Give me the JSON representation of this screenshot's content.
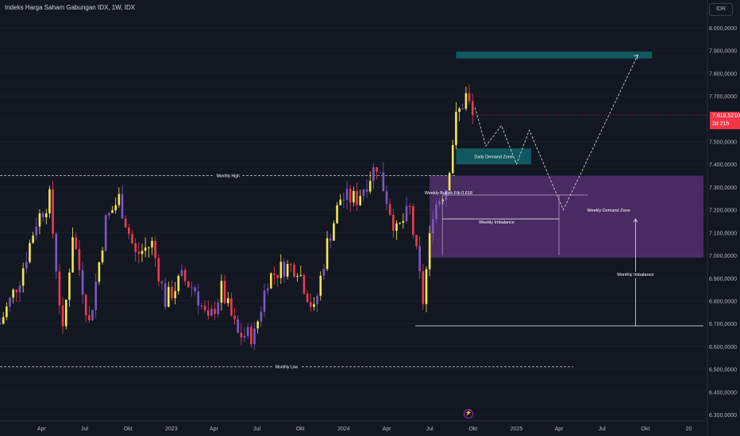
{
  "header": {
    "title": "Indeks Harga Saham Gabungan IDX, 1W, IDX",
    "currency_button": "IDR"
  },
  "price_tag": {
    "price": "7.616,5210",
    "countdown": "2d 21h"
  },
  "colors": {
    "background": "#131722",
    "bull_candle": "#f3e84a",
    "bear_candle": "#ef3b4f",
    "alt_candle": "#7e57c2",
    "teal_zone": "#0f5c63",
    "purple_zone": "#7b3fa0"
  },
  "icons": {
    "events": "flash-icon"
  },
  "chart_data": {
    "type": "candlestick",
    "title": "Indeks Harga Saham Gabungan IDX, 1W, IDX",
    "y_axis": {
      "min": 6300,
      "max": 8000,
      "tick_values": [
        8000,
        7900,
        7800,
        7700,
        7600,
        7500,
        7400,
        7300,
        7200,
        7100,
        7000,
        6900,
        6800,
        6700,
        6600,
        6500,
        6400,
        6300
      ],
      "tick_labels": [
        "8.000,0000",
        "7.900,0000",
        "7.800,0000",
        "7.700,0000",
        "7.600,0000",
        "7.500,0000",
        "7.400,0000",
        "7.300,0000",
        "7.200,0000",
        "7.100,0000",
        "7.000,0000",
        "6.900,0000",
        "6.800,0000",
        "6.700,0000",
        "6.600,0000",
        "6.500,0000",
        "6.400,0000",
        "6.300,0000"
      ]
    },
    "x_axis": {
      "start": "2022-01-03",
      "end": "2026-02-01",
      "tick_dates": [
        "2022-04-01",
        "2022-07-01",
        "2022-10-01",
        "2023-01-01",
        "2023-04-01",
        "2023-07-01",
        "2023-10-01",
        "2024-01-01",
        "2024-04-01",
        "2024-07-01",
        "2024-10-01",
        "2025-01-01",
        "2025-04-01",
        "2025-07-01",
        "2025-10-01",
        "2026-01-01"
      ],
      "tick_labels": [
        "Apr",
        "Jul",
        "Okt",
        "2023",
        "Apr",
        "Jul",
        "Okt",
        "2024",
        "Apr",
        "Jul",
        "Okt",
        "2025",
        "Apr",
        "Jul",
        "Okt",
        "20"
      ]
    },
    "last_price": 7616.521,
    "anchors": [
      [
        "2022-01-03",
        6700
      ],
      [
        "2022-02-14",
        6900
      ],
      [
        "2022-03-21",
        7150
      ],
      [
        "2022-04-18",
        7250
      ],
      [
        "2022-05-16",
        6650
      ],
      [
        "2022-06-06",
        7100
      ],
      [
        "2022-07-11",
        6700
      ],
      [
        "2022-08-15",
        7150
      ],
      [
        "2022-09-12",
        7250
      ],
      [
        "2022-10-17",
        7000
      ],
      [
        "2022-11-21",
        7050
      ],
      [
        "2022-12-19",
        6800
      ],
      [
        "2023-01-23",
        6900
      ],
      [
        "2023-02-20",
        6850
      ],
      [
        "2023-03-20",
        6700
      ],
      [
        "2023-04-17",
        6850
      ],
      [
        "2023-05-22",
        6650
      ],
      [
        "2023-06-26",
        6650
      ],
      [
        "2023-07-24",
        6900
      ],
      [
        "2023-08-28",
        6950
      ],
      [
        "2023-09-25",
        6950
      ],
      [
        "2023-10-30",
        6750
      ],
      [
        "2023-11-27",
        7050
      ],
      [
        "2023-12-25",
        7250
      ],
      [
        "2024-01-29",
        7250
      ],
      [
        "2024-03-11",
        7400
      ],
      [
        "2024-04-22",
        7100
      ],
      [
        "2024-05-20",
        7200
      ],
      [
        "2024-06-17",
        6800
      ],
      [
        "2024-07-08",
        7200
      ],
      [
        "2024-08-05",
        7300
      ],
      [
        "2024-08-26",
        7600
      ],
      [
        "2024-09-16",
        7700
      ],
      [
        "2024-09-30",
        7616.5
      ]
    ],
    "levels": [
      {
        "label": "Monthly High",
        "value": 7350,
        "from": "2022-01-03",
        "to": "2024-08-26",
        "style": "dashed"
      },
      {
        "label": "Monthly Low",
        "value": 6510,
        "from": "2022-01-03",
        "to": "2025-05-01",
        "style": "dashed"
      },
      {
        "label": "",
        "value": 6690,
        "from": "2024-06-01",
        "to": "2026-02-01",
        "style": "solid"
      }
    ],
    "zones": [
      {
        "label": "",
        "from": "2024-08-26",
        "to": "2025-10-15",
        "high": 7895,
        "low": 7865,
        "color": "teal"
      },
      {
        "label": "Daily Demand Zone",
        "from": "2024-08-26",
        "to": "2025-02-01",
        "high": 7470,
        "low": 7400,
        "color": "teal"
      },
      {
        "label": "Weekly Demand Zone",
        "from": "2024-07-01",
        "to": "2026-02-01",
        "high": 7350,
        "low": 6990,
        "color": "purple"
      }
    ],
    "annotations": [
      {
        "label": "Weekly Bullish Fib 0.618",
        "date": "2024-08-10",
        "from": "2024-07-28",
        "to": "2025-06-01",
        "value": 7265
      },
      {
        "label": "Weekly Imbalance",
        "date": "2024-11-20",
        "from": "2024-07-28",
        "to": "2025-04-01",
        "low": 7000,
        "high": 7265
      },
      {
        "label": "Monthly Imbalance",
        "date": "2025-09-10",
        "low": 6690,
        "high": 7160
      }
    ],
    "projection": [
      [
        "2024-10-05",
        7650
      ],
      [
        "2024-10-28",
        7480
      ],
      [
        "2024-11-30",
        7570
      ],
      [
        "2025-01-01",
        7400
      ],
      [
        "2025-01-28",
        7550
      ],
      [
        "2025-04-10",
        7200
      ],
      [
        "2025-09-15",
        7880
      ]
    ]
  }
}
